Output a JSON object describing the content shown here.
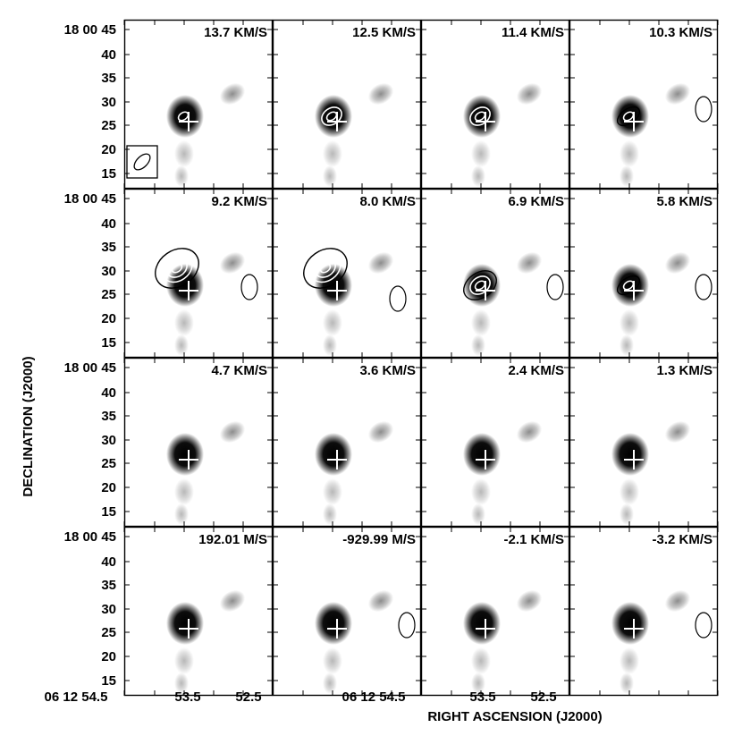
{
  "figure": {
    "x_axis_title": "RIGHT ASCENSION (J2000)",
    "y_axis_title": "DECLINATION (J2000)",
    "dec_first_label": "18 00 45",
    "dec_tick_labels": [
      "40",
      "35",
      "30",
      "25",
      "20",
      "15"
    ],
    "ra_labels_col1": [
      "06 12 54.5",
      "53.5",
      "52.5"
    ],
    "ra_labels_col2": [
      "06 12 54.5"
    ],
    "ra_labels_col3": [
      "53.5",
      "52.5"
    ]
  },
  "channels": [
    {
      "label": "13.7 KM/S",
      "contours": {
        "white": 1,
        "black": 0
      }
    },
    {
      "label": "12.5 KM/S",
      "contours": {
        "white": 2,
        "black": 0
      }
    },
    {
      "label": "11.4 KM/S",
      "contours": {
        "white": 2,
        "black": 0
      }
    },
    {
      "label": "10.3 KM/S",
      "contours": {
        "white": 1,
        "black": 1
      }
    },
    {
      "label": "9.2 KM/S",
      "contours": {
        "white": 3,
        "black": 1
      }
    },
    {
      "label": "8.0 KM/S",
      "contours": {
        "white": 3,
        "black": 1
      }
    },
    {
      "label": "6.9 KM/S",
      "contours": {
        "white": 2,
        "black": 1
      }
    },
    {
      "label": "5.8 KM/S",
      "contours": {
        "white": 1,
        "black": 1
      }
    },
    {
      "label": "4.7 KM/S",
      "contours": {
        "white": 0,
        "black": 0
      }
    },
    {
      "label": "3.6 KM/S",
      "contours": {
        "white": 0,
        "black": 0
      }
    },
    {
      "label": "2.4 KM/S",
      "contours": {
        "white": 0,
        "black": 0
      }
    },
    {
      "label": "1.3 KM/S",
      "contours": {
        "white": 0,
        "black": 0
      }
    },
    {
      "label": "192.01 M/S",
      "contours": {
        "white": 0,
        "black": 0
      }
    },
    {
      "label": "-929.99 M/S",
      "contours": {
        "white": 0,
        "black": 0
      }
    },
    {
      "label": "-2.1 KM/S",
      "contours": {
        "white": 0,
        "black": 0
      }
    },
    {
      "label": "-3.2 KM/S",
      "contours": {
        "white": 0,
        "black": 0
      }
    }
  ]
}
